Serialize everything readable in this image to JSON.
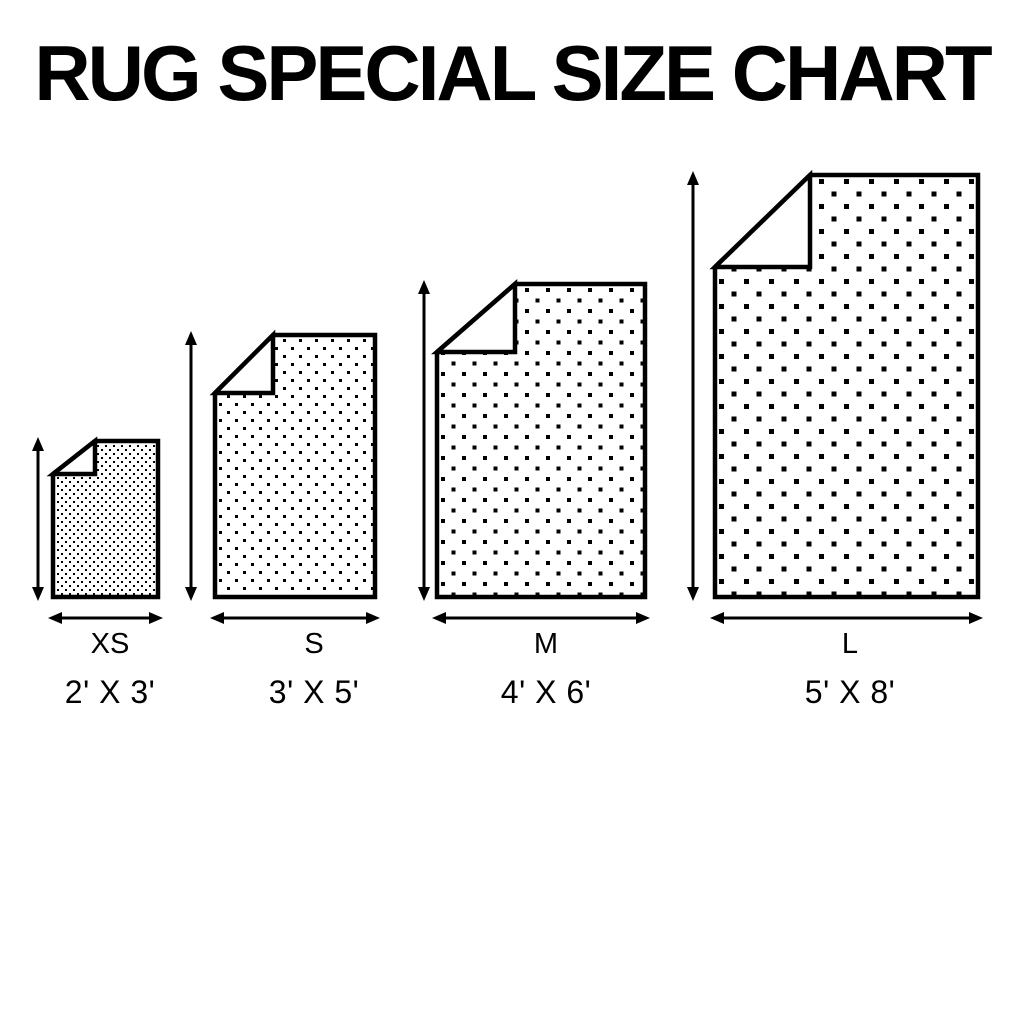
{
  "title": "RUG SPECIAL SIZE CHART",
  "colors": {
    "ink": "#000000",
    "background": "#ffffff"
  },
  "rugs": [
    {
      "id": "xs",
      "label": "XS",
      "dimensions": "2' X 3'",
      "width_ft": 2,
      "height_ft": 3
    },
    {
      "id": "s",
      "label": "S",
      "dimensions": "3' X 5'",
      "width_ft": 3,
      "height_ft": 5
    },
    {
      "id": "m",
      "label": "M",
      "dimensions": "4' X 6'",
      "width_ft": 4,
      "height_ft": 6
    },
    {
      "id": "l",
      "label": "L",
      "dimensions": "5' X 8'",
      "width_ft": 5,
      "height_ft": 8
    }
  ]
}
